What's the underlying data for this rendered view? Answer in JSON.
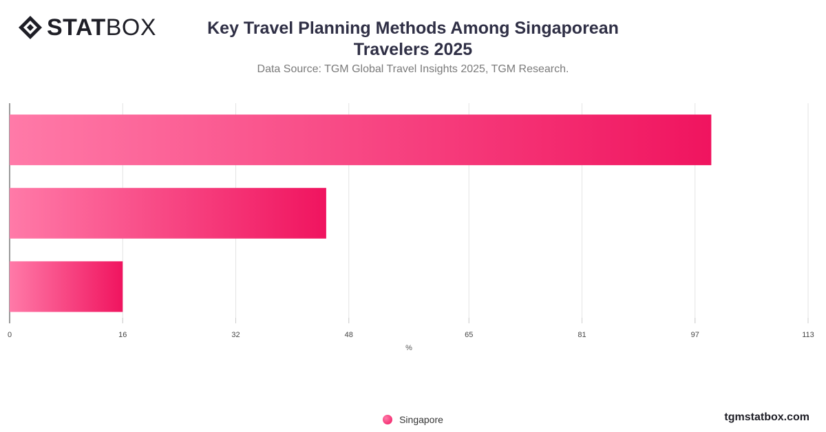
{
  "brand": {
    "logo_bold": "STAT",
    "logo_light": "BOX",
    "website": "tgmstatbox.com"
  },
  "chart_data": {
    "type": "bar",
    "orientation": "horizontal",
    "title": "Key Travel Planning Methods Among Singaporean Travelers 2025",
    "subtitle": "Data Source: TGM Global Travel Insights 2025, TGM Research.",
    "xlabel": "%",
    "xlim": [
      0,
      113
    ],
    "x_ticks": [
      0,
      16,
      32,
      48,
      65,
      81,
      97,
      113
    ],
    "categories": [
      "",
      "",
      ""
    ],
    "series": [
      {
        "name": "Singapore",
        "values": [
          99.3,
          44.8,
          16.0
        ]
      }
    ],
    "grid": true,
    "legend_position": "bottom-center",
    "colors": {
      "bar_start": "#ff7aa8",
      "bar_end": "#f0145f",
      "grid": "#e3e3e3",
      "axis": "#333333"
    }
  }
}
